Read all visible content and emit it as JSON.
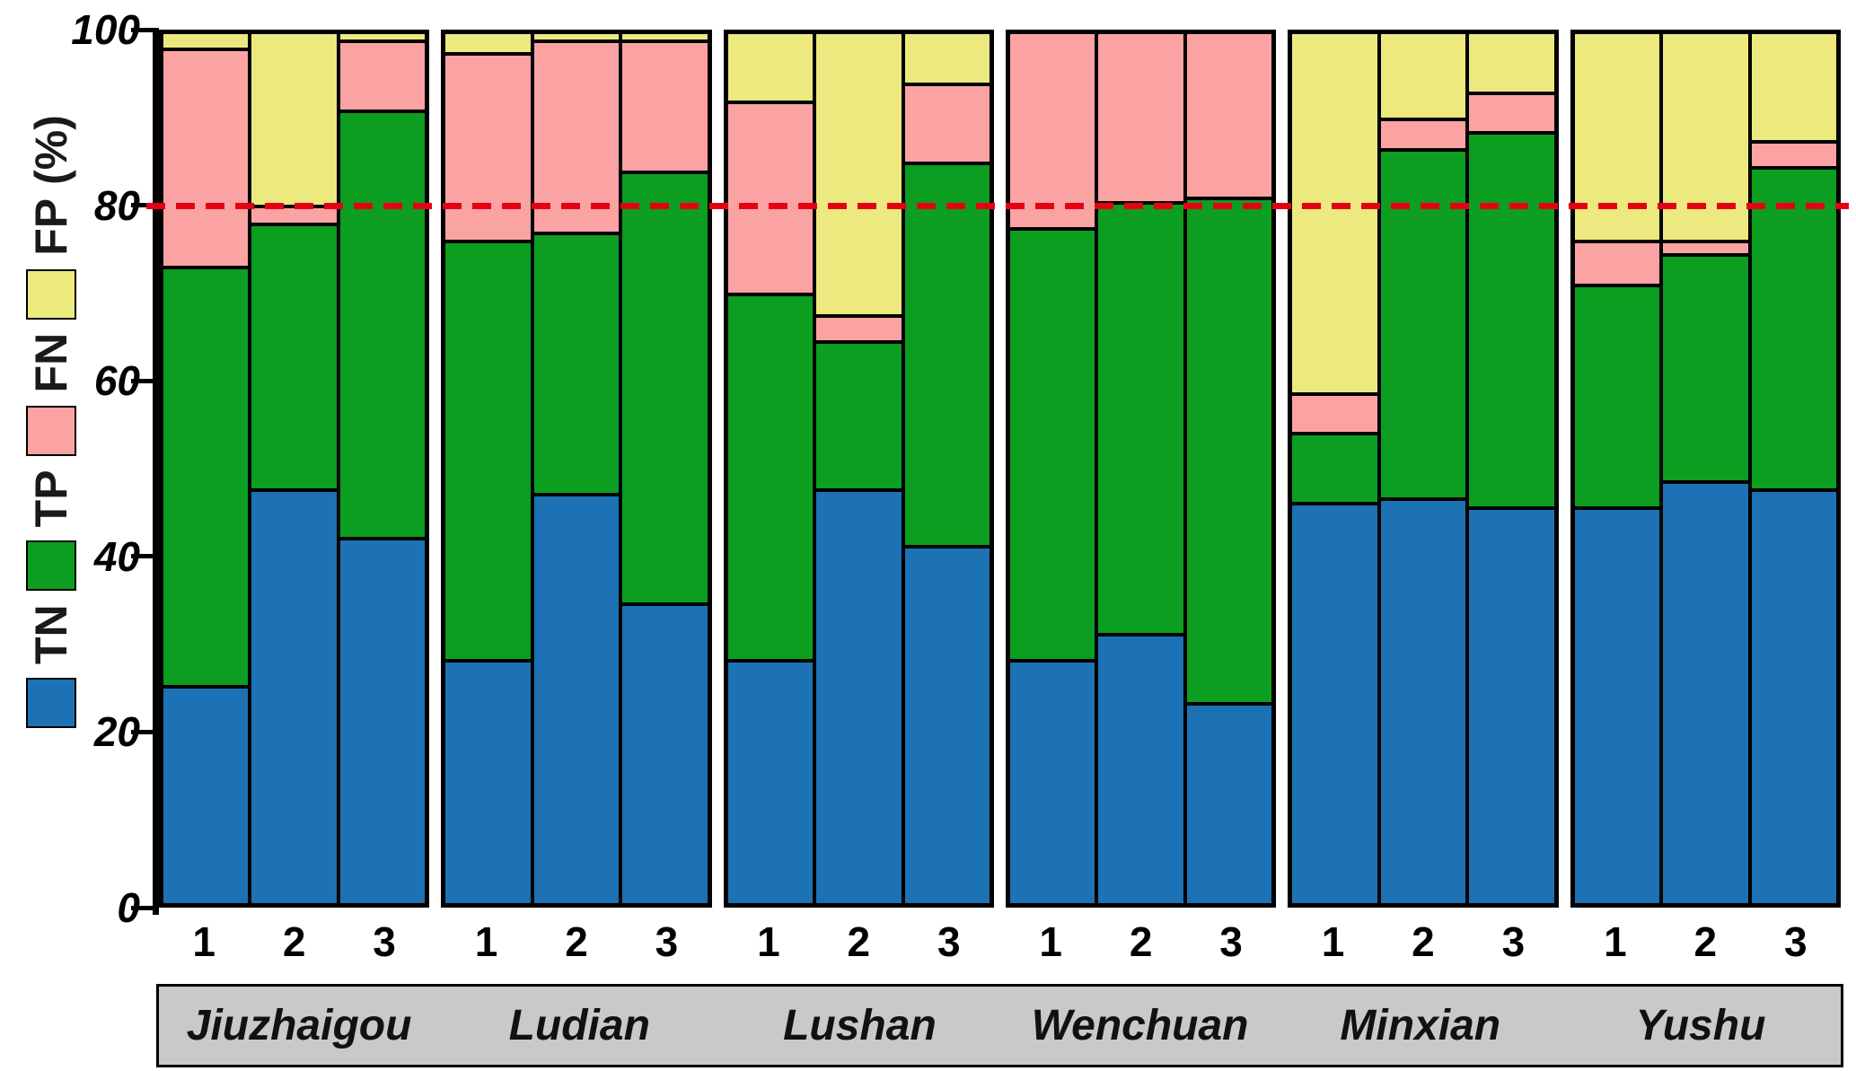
{
  "figure": {
    "background": "#ffffff",
    "axis_color": "#000000",
    "band_bg": "#c9c9c9"
  },
  "legend": {
    "items": [
      {
        "label": "TN",
        "color": "#1c72b4"
      },
      {
        "label": "TP",
        "color": "#0b9e20"
      },
      {
        "label": "FN",
        "color": "#fba3a3"
      },
      {
        "label": "FP",
        "color": "#ece97f"
      }
    ],
    "unit_label": "(%)"
  },
  "chart_data": {
    "type": "bar",
    "stacked": true,
    "title": "",
    "xlabel": "",
    "ylabel": "TN / TP / FN / FP (%)",
    "ylim": [
      0,
      100
    ],
    "yticks": [
      0,
      20,
      40,
      60,
      80,
      100
    ],
    "grid": false,
    "legend_position": "left-vertical",
    "series_names": [
      "TN",
      "TP",
      "FN",
      "FP"
    ],
    "series_colors": [
      "#1c72b4",
      "#0b9e20",
      "#fba3a3",
      "#ece97f"
    ],
    "reference_line": {
      "y": 80,
      "color": "#e60014",
      "style": "dashed"
    },
    "bar_labels": [
      "1",
      "2",
      "3"
    ],
    "groups": [
      {
        "name": "Jiuzhaigou",
        "bars": [
          [
            25,
            48,
            25,
            2
          ],
          [
            47.5,
            30.5,
            2,
            20
          ],
          [
            42,
            49,
            8,
            1
          ]
        ]
      },
      {
        "name": "Ludian",
        "bars": [
          [
            28,
            48,
            21.5,
            2.5
          ],
          [
            47,
            30,
            22,
            1
          ],
          [
            34.5,
            49.5,
            15,
            1
          ]
        ]
      },
      {
        "name": "Lushan",
        "bars": [
          [
            28,
            42,
            22,
            8
          ],
          [
            47.5,
            17,
            3,
            32.5
          ],
          [
            41,
            44,
            9,
            6
          ]
        ]
      },
      {
        "name": "Wenchuan",
        "bars": [
          [
            28,
            49.5,
            22.5,
            0
          ],
          [
            31,
            49.5,
            19.5,
            0
          ],
          [
            23,
            58,
            19,
            0
          ]
        ]
      },
      {
        "name": "Minxian",
        "bars": [
          [
            46,
            8,
            4.5,
            41.5
          ],
          [
            46.5,
            40,
            3.5,
            10
          ],
          [
            45.5,
            43,
            4.5,
            7
          ]
        ]
      },
      {
        "name": "Yushu",
        "bars": [
          [
            45.5,
            25.5,
            5,
            24
          ],
          [
            48.5,
            26,
            1.5,
            24
          ],
          [
            47.5,
            37,
            3,
            12.5
          ]
        ]
      }
    ]
  }
}
